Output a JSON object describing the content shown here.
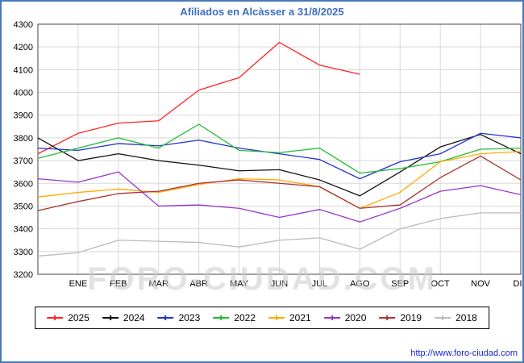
{
  "title": "Afiliados en Alcàsser a 31/8/2025",
  "watermark": "FORO-CIUDAD.COM",
  "footer_link": "http://www.foro-ciudad.com",
  "chart_data": {
    "type": "line",
    "title": "Afiliados en Alcàsser a 31/8/2025",
    "categories": [
      "ENE",
      "FEB",
      "MAR",
      "ABR",
      "MAY",
      "JUN",
      "JUL",
      "AGO",
      "SEP",
      "OCT",
      "NOV",
      "DIC"
    ],
    "layout_note": "13 points per series: one unlabeled start-of-year point at the left plot edge, then 12 monthly points; 2025 series ends at AGO",
    "ylim": [
      3200,
      4300
    ],
    "ytick_step": 100,
    "grid": true,
    "legend_position": "bottom",
    "series": [
      {
        "name": "2025",
        "color": "#ff2222",
        "values": [
          3730,
          3820,
          3865,
          3875,
          4010,
          4065,
          4220,
          4120,
          4080,
          null,
          null,
          null,
          null
        ]
      },
      {
        "name": "2024",
        "color": "#111111",
        "values": [
          3800,
          3700,
          3730,
          3700,
          3680,
          3655,
          3660,
          3615,
          3545,
          3650,
          3760,
          3815,
          3730
        ]
      },
      {
        "name": "2023",
        "color": "#2233cc",
        "values": [
          3755,
          3745,
          3775,
          3765,
          3790,
          3755,
          3730,
          3705,
          3620,
          3695,
          3730,
          3820,
          3800
        ]
      },
      {
        "name": "2022",
        "color": "#22bb33",
        "values": [
          3710,
          3755,
          3800,
          3755,
          3860,
          3745,
          3735,
          3755,
          3645,
          3665,
          3695,
          3750,
          3755
        ]
      },
      {
        "name": "2021",
        "color": "#ffaa00",
        "values": [
          3540,
          3560,
          3575,
          3560,
          3595,
          3620,
          3615,
          3585,
          3490,
          3560,
          3695,
          3730,
          3740
        ]
      },
      {
        "name": "2020",
        "color": "#9933cc",
        "values": [
          3620,
          3605,
          3650,
          3500,
          3505,
          3490,
          3450,
          3485,
          3430,
          3490,
          3565,
          3590,
          3550
        ]
      },
      {
        "name": "2019",
        "color": "#aa3333",
        "values": [
          3480,
          3520,
          3555,
          3565,
          3600,
          3615,
          3600,
          3585,
          3490,
          3505,
          3625,
          3720,
          3615
        ]
      },
      {
        "name": "2018",
        "color": "#bbbbbb",
        "values": [
          3280,
          3295,
          3350,
          3345,
          3340,
          3320,
          3350,
          3360,
          3310,
          3400,
          3445,
          3470,
          3470
        ]
      }
    ]
  }
}
